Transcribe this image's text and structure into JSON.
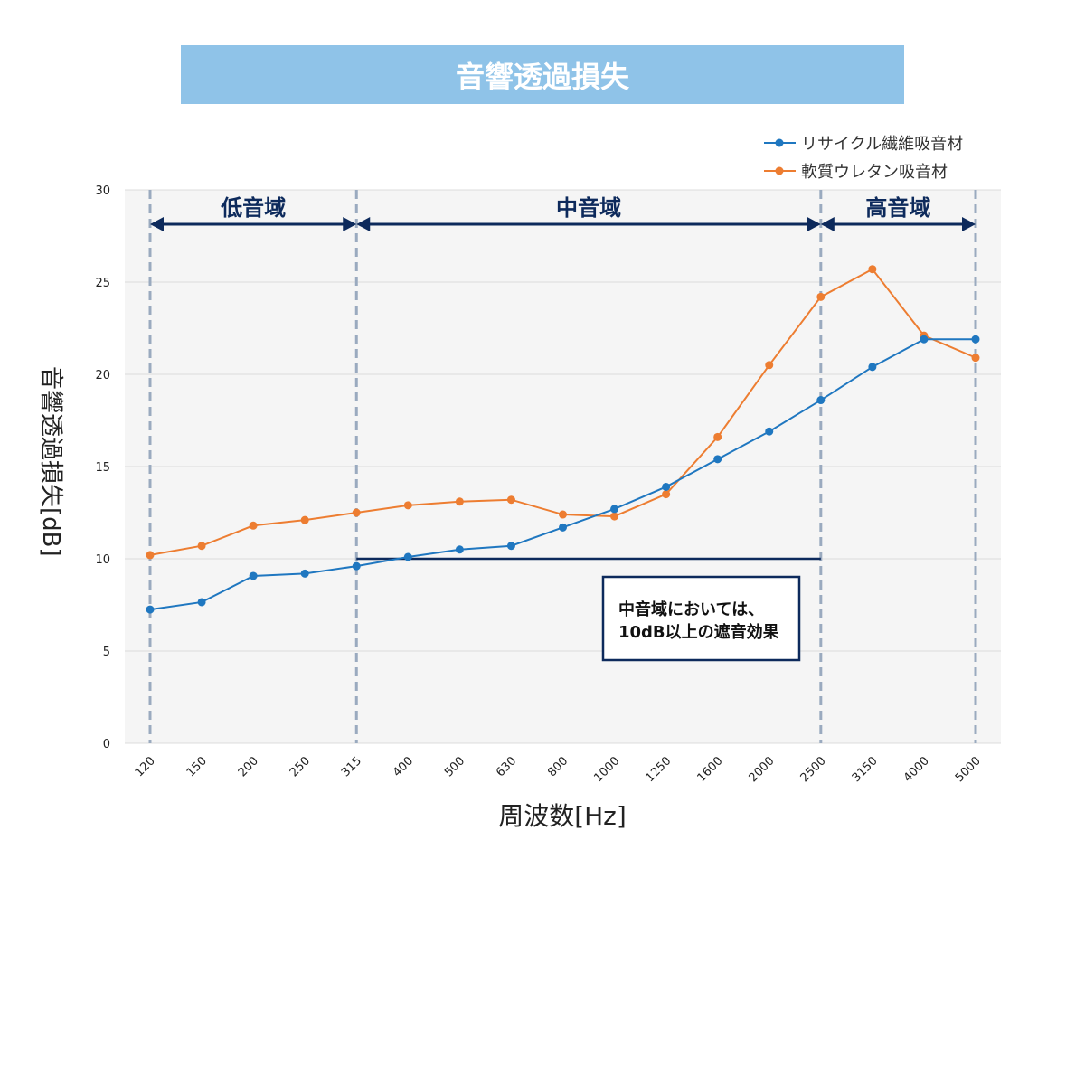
{
  "chart_data": {
    "type": "line",
    "title": "音響透過損失",
    "xlabel": "周波数[Hz]",
    "ylabel": "音響透過損失[dB]",
    "categories": [
      "120",
      "150",
      "200",
      "250",
      "315",
      "400",
      "500",
      "630",
      "800",
      "1000",
      "1250",
      "1600",
      "2000",
      "2500",
      "3150",
      "4000",
      "5000"
    ],
    "ylim": [
      0,
      30
    ],
    "yticks": [
      0,
      5,
      10,
      15,
      20,
      25,
      30
    ],
    "grid": true,
    "legend_position": "top-right",
    "series": [
      {
        "name": "リサイクル繊維吸音材",
        "color": "#1f77c0",
        "values": [
          7.25,
          7.65,
          9.07,
          9.2,
          9.6,
          10.1,
          10.5,
          10.7,
          11.7,
          12.7,
          13.9,
          15.4,
          16.9,
          18.6,
          20.4,
          21.9,
          21.9
        ]
      },
      {
        "name": "軟質ウレタン吸音材",
        "color": "#ed7d31",
        "values": [
          10.2,
          10.7,
          11.8,
          12.1,
          12.5,
          12.9,
          13.1,
          13.2,
          12.4,
          12.3,
          13.5,
          16.6,
          20.5,
          24.2,
          25.7,
          22.1,
          20.9
        ]
      }
    ],
    "bands": [
      {
        "label": "低音域",
        "from": "120",
        "to": "315"
      },
      {
        "label": "中音域",
        "from": "315",
        "to": "2500"
      },
      {
        "label": "高音域",
        "from": "2500",
        "to": "5000"
      }
    ],
    "reference_line": {
      "value": 10,
      "from": "315",
      "to": "2500"
    },
    "annotation": {
      "line1": "中音域においては、",
      "line2": "10dB以上の遮音効果"
    },
    "colors": {
      "title_bg": "#8fc3e8",
      "band_arrow": "#0d2a5c",
      "divider": "#9aaabf",
      "plot_bg": "#f5f5f5"
    }
  }
}
